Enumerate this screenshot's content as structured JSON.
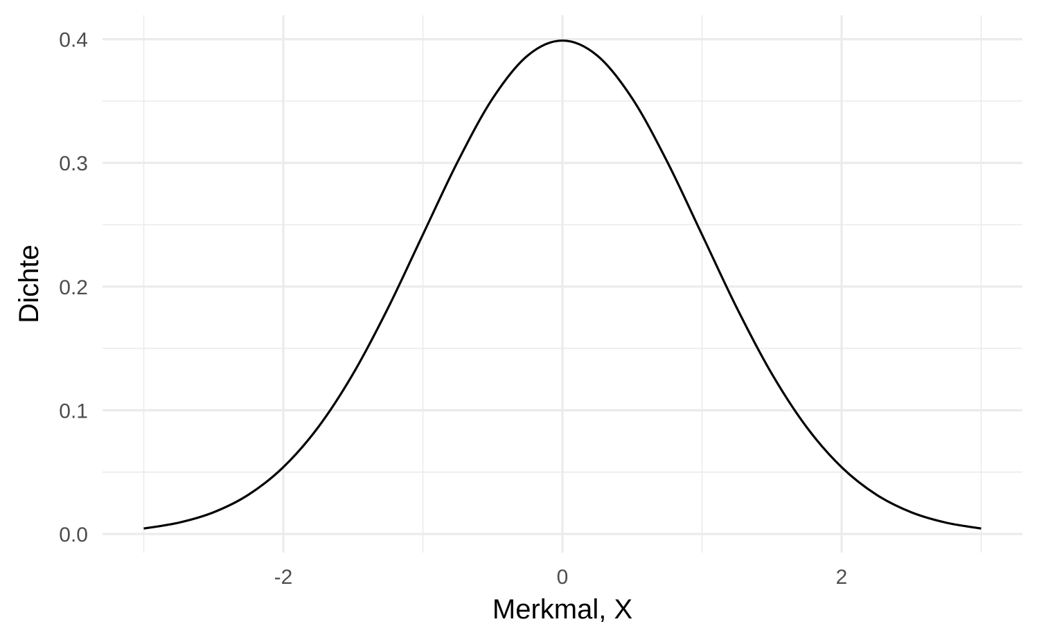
{
  "chart_data": {
    "type": "line",
    "title": "",
    "xlabel": "Merkmal, X",
    "ylabel": "Dichte",
    "xlim": [
      -3.3,
      3.3
    ],
    "ylim": [
      -0.0,
      0.42
    ],
    "x_ticks": [
      {
        "value": -2,
        "label": "-2"
      },
      {
        "value": 0,
        "label": "0"
      },
      {
        "value": 2,
        "label": "2"
      }
    ],
    "x_minor_ticks": [
      -3,
      -1,
      1,
      3
    ],
    "y_ticks": [
      {
        "value": 0.0,
        "label": "0.0"
      },
      {
        "value": 0.1,
        "label": "0.1"
      },
      {
        "value": 0.2,
        "label": "0.2"
      },
      {
        "value": 0.3,
        "label": "0.3"
      },
      {
        "value": 0.4,
        "label": "0.4"
      }
    ],
    "y_minor_ticks": [
      0.05,
      0.15,
      0.25,
      0.35
    ],
    "grid": true,
    "legend": "none",
    "series": [
      {
        "color": "#000000",
        "x": [
          -3.0,
          -2.75,
          -2.5,
          -2.25,
          -2.0,
          -1.75,
          -1.5,
          -1.25,
          -1.0,
          -0.75,
          -0.5,
          -0.25,
          0.0,
          0.25,
          0.5,
          0.75,
          1.0,
          1.25,
          1.5,
          1.75,
          2.0,
          2.25,
          2.5,
          2.75,
          3.0
        ],
        "y": [
          0.0044,
          0.0091,
          0.0175,
          0.0317,
          0.054,
          0.0863,
          0.1295,
          0.1826,
          0.242,
          0.3011,
          0.3521,
          0.3867,
          0.3989,
          0.3867,
          0.3521,
          0.3011,
          0.242,
          0.1826,
          0.1295,
          0.0863,
          0.054,
          0.0317,
          0.0175,
          0.0091,
          0.0044
        ]
      }
    ]
  },
  "colors": {
    "grid": "#ebebeb",
    "tick_text": "#4d4d4d",
    "line": "#000000",
    "background": "#ffffff"
  }
}
